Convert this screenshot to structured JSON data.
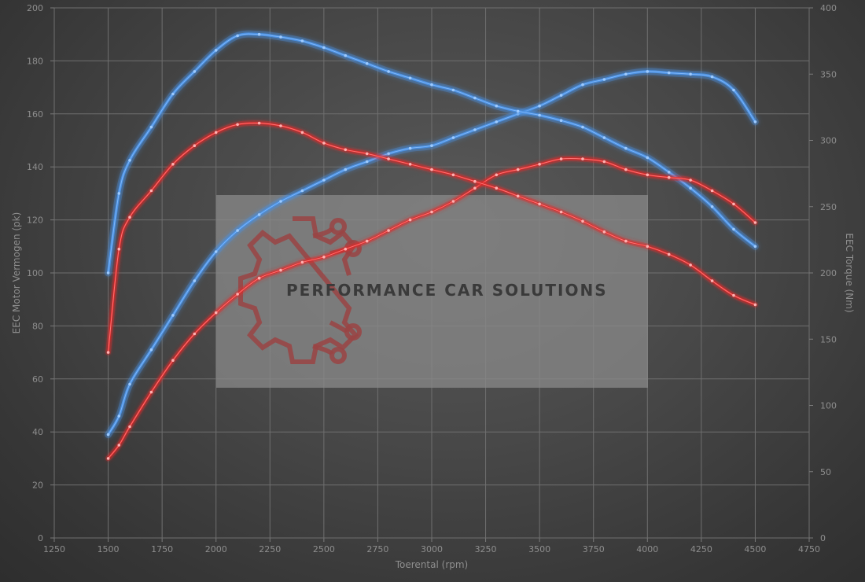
{
  "chart_data": {
    "type": "line",
    "xlabel": "Toerental (rpm)",
    "ylabel_left": "EEC Motor Vermogen (pk)",
    "ylabel_right": "EEC Torque (Nm)",
    "xlim": [
      1250,
      4750
    ],
    "x_ticks": [
      1250,
      1500,
      1750,
      2000,
      2250,
      2500,
      2750,
      3000,
      3250,
      3500,
      3750,
      4000,
      4250,
      4500,
      4750
    ],
    "ylim_left": [
      0,
      200
    ],
    "y_ticks_left": [
      0,
      20,
      40,
      60,
      80,
      100,
      120,
      140,
      160,
      180,
      200
    ],
    "ylim_right": [
      0,
      400
    ],
    "y_ticks_right": [
      0,
      50,
      100,
      150,
      200,
      250,
      300,
      350,
      400
    ],
    "grid": true,
    "series": [
      {
        "axis": "left",
        "color": "#4a8fe0",
        "points": [
          [
            1500,
            39
          ],
          [
            1550,
            46
          ],
          [
            1600,
            58
          ],
          [
            1700,
            71
          ],
          [
            1800,
            84
          ],
          [
            1900,
            97
          ],
          [
            2000,
            108
          ],
          [
            2100,
            116
          ],
          [
            2200,
            122
          ],
          [
            2300,
            127
          ],
          [
            2400,
            131
          ],
          [
            2500,
            135
          ],
          [
            2600,
            139
          ],
          [
            2700,
            142
          ],
          [
            2800,
            145
          ],
          [
            2900,
            147
          ],
          [
            3000,
            148
          ],
          [
            3100,
            151
          ],
          [
            3200,
            154
          ],
          [
            3300,
            157
          ],
          [
            3400,
            160
          ],
          [
            3500,
            163
          ],
          [
            3600,
            167
          ],
          [
            3700,
            171
          ],
          [
            3800,
            173
          ],
          [
            3900,
            175
          ],
          [
            4000,
            176
          ],
          [
            4100,
            175.5
          ],
          [
            4200,
            175
          ],
          [
            4300,
            174
          ],
          [
            4400,
            169
          ],
          [
            4500,
            157
          ]
        ]
      },
      {
        "axis": "right",
        "color": "#4a8fe0",
        "points": [
          [
            1500,
            200
          ],
          [
            1550,
            260
          ],
          [
            1600,
            285
          ],
          [
            1700,
            310
          ],
          [
            1800,
            335
          ],
          [
            1900,
            352
          ],
          [
            2000,
            368
          ],
          [
            2100,
            379
          ],
          [
            2200,
            380
          ],
          [
            2300,
            378
          ],
          [
            2400,
            375
          ],
          [
            2500,
            370
          ],
          [
            2600,
            364
          ],
          [
            2700,
            358
          ],
          [
            2800,
            352
          ],
          [
            2900,
            347
          ],
          [
            3000,
            342
          ],
          [
            3100,
            338
          ],
          [
            3200,
            332
          ],
          [
            3300,
            326
          ],
          [
            3400,
            322
          ],
          [
            3500,
            319
          ],
          [
            3600,
            315
          ],
          [
            3700,
            310
          ],
          [
            3800,
            302
          ],
          [
            3900,
            294
          ],
          [
            4000,
            287
          ],
          [
            4100,
            276
          ],
          [
            4200,
            264
          ],
          [
            4300,
            250
          ],
          [
            4400,
            233
          ],
          [
            4500,
            220
          ]
        ]
      },
      {
        "axis": "left",
        "color": "#e02828",
        "points": [
          [
            1500,
            30
          ],
          [
            1550,
            35
          ],
          [
            1600,
            42
          ],
          [
            1700,
            55
          ],
          [
            1800,
            67
          ],
          [
            1900,
            77
          ],
          [
            2000,
            85
          ],
          [
            2100,
            92
          ],
          [
            2200,
            98
          ],
          [
            2300,
            101
          ],
          [
            2400,
            104
          ],
          [
            2500,
            106
          ],
          [
            2600,
            109
          ],
          [
            2700,
            112
          ],
          [
            2800,
            116
          ],
          [
            2900,
            120
          ],
          [
            3000,
            123
          ],
          [
            3100,
            127
          ],
          [
            3200,
            132
          ],
          [
            3300,
            137
          ],
          [
            3400,
            139
          ],
          [
            3500,
            141
          ],
          [
            3600,
            143
          ],
          [
            3700,
            143
          ],
          [
            3800,
            142
          ],
          [
            3900,
            139
          ],
          [
            4000,
            137
          ],
          [
            4100,
            136
          ],
          [
            4200,
            135
          ],
          [
            4300,
            131
          ],
          [
            4400,
            126
          ],
          [
            4500,
            119
          ]
        ]
      },
      {
        "axis": "right",
        "color": "#e02828",
        "points": [
          [
            1500,
            140
          ],
          [
            1550,
            218
          ],
          [
            1600,
            242
          ],
          [
            1700,
            262
          ],
          [
            1800,
            282
          ],
          [
            1900,
            296
          ],
          [
            2000,
            306
          ],
          [
            2100,
            312
          ],
          [
            2200,
            313
          ],
          [
            2300,
            311
          ],
          [
            2400,
            306
          ],
          [
            2500,
            298
          ],
          [
            2600,
            293
          ],
          [
            2700,
            290
          ],
          [
            2800,
            286
          ],
          [
            2900,
            282
          ],
          [
            3000,
            278
          ],
          [
            3100,
            274
          ],
          [
            3200,
            269
          ],
          [
            3300,
            264
          ],
          [
            3400,
            258
          ],
          [
            3500,
            252
          ],
          [
            3600,
            246
          ],
          [
            3700,
            239
          ],
          [
            3800,
            231
          ],
          [
            3900,
            224
          ],
          [
            4000,
            220
          ],
          [
            4100,
            214
          ],
          [
            4200,
            206
          ],
          [
            4300,
            194
          ],
          [
            4400,
            183
          ],
          [
            4500,
            176
          ]
        ]
      }
    ]
  },
  "watermark": {
    "text": "PERFORMANCE CAR SOLUTIONS"
  }
}
